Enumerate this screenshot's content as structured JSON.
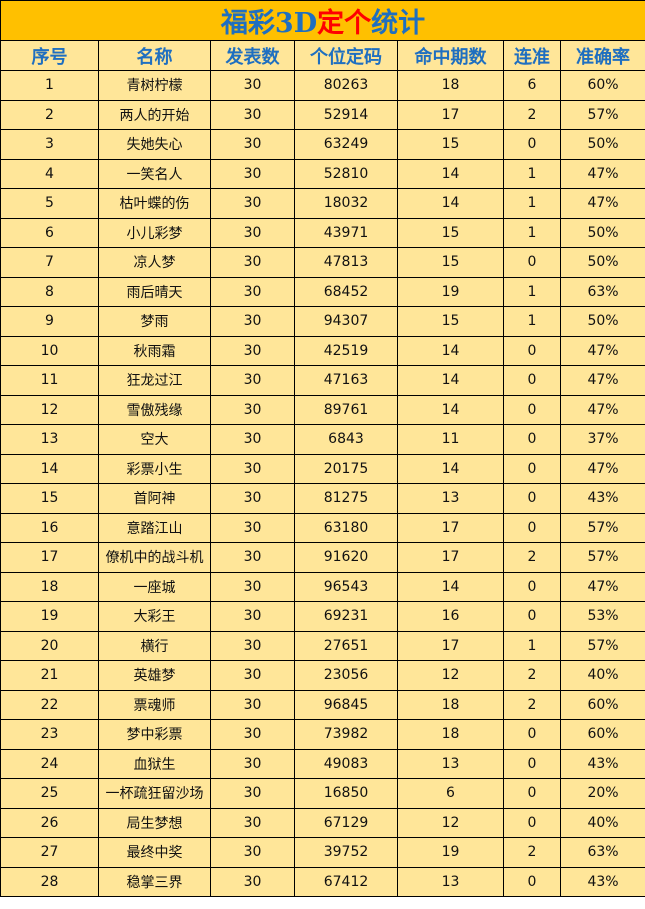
{
  "title": {
    "part1": "福彩3D",
    "part2": "定个",
    "part3": "统计"
  },
  "colors": {
    "title_bg": "#FFC000",
    "cell_bg": "#FFE699",
    "title_text": "#1F6FC0",
    "title_highlight": "#FF0000"
  },
  "headers": [
    "序号",
    "名称",
    "发表数",
    "个位定码",
    "命中期数",
    "连准",
    "准确率"
  ],
  "rows": [
    [
      "1",
      "青树柠檬",
      "30",
      "80263",
      "18",
      "6",
      "60%"
    ],
    [
      "2",
      "两人的开始",
      "30",
      "52914",
      "17",
      "2",
      "57%"
    ],
    [
      "3",
      "失她失心",
      "30",
      "63249",
      "15",
      "0",
      "50%"
    ],
    [
      "4",
      "一笑名人",
      "30",
      "52810",
      "14",
      "1",
      "47%"
    ],
    [
      "5",
      "枯叶蝶的伤",
      "30",
      "18032",
      "14",
      "1",
      "47%"
    ],
    [
      "6",
      "小儿彩梦",
      "30",
      "43971",
      "15",
      "1",
      "50%"
    ],
    [
      "7",
      "凉人梦",
      "30",
      "47813",
      "15",
      "0",
      "50%"
    ],
    [
      "8",
      "雨后晴天",
      "30",
      "68452",
      "19",
      "1",
      "63%"
    ],
    [
      "9",
      "梦雨",
      "30",
      "94307",
      "15",
      "1",
      "50%"
    ],
    [
      "10",
      "秋雨霜",
      "30",
      "42519",
      "14",
      "0",
      "47%"
    ],
    [
      "11",
      "狂龙过江",
      "30",
      "47163",
      "14",
      "0",
      "47%"
    ],
    [
      "12",
      "雪傲残缘",
      "30",
      "89761",
      "14",
      "0",
      "47%"
    ],
    [
      "13",
      "空大",
      "30",
      "6843",
      "11",
      "0",
      "37%"
    ],
    [
      "14",
      "彩票小生",
      "30",
      "20175",
      "14",
      "0",
      "47%"
    ],
    [
      "15",
      "首阿神",
      "30",
      "81275",
      "13",
      "0",
      "43%"
    ],
    [
      "16",
      "意踏江山",
      "30",
      "63180",
      "17",
      "0",
      "57%"
    ],
    [
      "17",
      "僚机中的战斗机",
      "30",
      "91620",
      "17",
      "2",
      "57%"
    ],
    [
      "18",
      "一座城",
      "30",
      "96543",
      "14",
      "0",
      "47%"
    ],
    [
      "19",
      "大彩王",
      "30",
      "69231",
      "16",
      "0",
      "53%"
    ],
    [
      "20",
      "横行",
      "30",
      "27651",
      "17",
      "1",
      "57%"
    ],
    [
      "21",
      "英雄梦",
      "30",
      "23056",
      "12",
      "2",
      "40%"
    ],
    [
      "22",
      "票魂师",
      "30",
      "96845",
      "18",
      "2",
      "60%"
    ],
    [
      "23",
      "梦中彩票",
      "30",
      "73982",
      "18",
      "0",
      "60%"
    ],
    [
      "24",
      "血狱生",
      "30",
      "49083",
      "13",
      "0",
      "43%"
    ],
    [
      "25",
      "一杯疏狂留沙场",
      "30",
      "16850",
      "6",
      "0",
      "20%"
    ],
    [
      "26",
      "局生梦想",
      "30",
      "67129",
      "12",
      "0",
      "40%"
    ],
    [
      "27",
      "最终中奖",
      "30",
      "39752",
      "19",
      "2",
      "63%"
    ],
    [
      "28",
      "稳掌三界",
      "30",
      "67412",
      "13",
      "0",
      "43%"
    ]
  ]
}
